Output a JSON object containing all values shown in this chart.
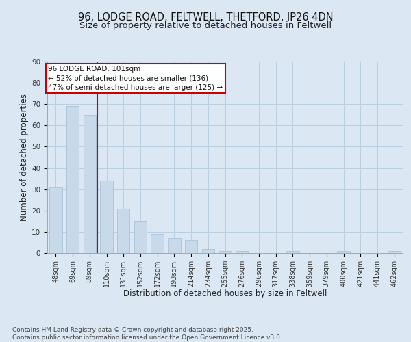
{
  "title_line1": "96, LODGE ROAD, FELTWELL, THETFORD, IP26 4DN",
  "title_line2": "Size of property relative to detached houses in Feltwell",
  "xlabel": "Distribution of detached houses by size in Feltwell",
  "ylabel": "Number of detached properties",
  "categories": [
    "48sqm",
    "69sqm",
    "89sqm",
    "110sqm",
    "131sqm",
    "152sqm",
    "172sqm",
    "193sqm",
    "214sqm",
    "234sqm",
    "255sqm",
    "276sqm",
    "296sqm",
    "317sqm",
    "338sqm",
    "359sqm",
    "379sqm",
    "400sqm",
    "421sqm",
    "441sqm",
    "462sqm"
  ],
  "values": [
    31,
    69,
    65,
    34,
    21,
    15,
    9,
    7,
    6,
    2,
    1,
    1,
    0,
    0,
    1,
    0,
    0,
    1,
    0,
    0,
    1
  ],
  "bar_color": "#c8d9ea",
  "bar_edge_color": "#a8c4d8",
  "grid_color": "#b8cfe0",
  "bg_color": "#dbe8f4",
  "vline_color": "#cc0000",
  "vline_x": 2.45,
  "annotation_text": "96 LODGE ROAD: 101sqm\n← 52% of detached houses are smaller (136)\n47% of semi-detached houses are larger (125) →",
  "annotation_box_color": "#ffffff",
  "annotation_edge_color": "#cc0000",
  "ylim": [
    0,
    90
  ],
  "yticks": [
    0,
    10,
    20,
    30,
    40,
    50,
    60,
    70,
    80,
    90
  ],
  "footer": "Contains HM Land Registry data © Crown copyright and database right 2025.\nContains public sector information licensed under the Open Government Licence v3.0.",
  "title_fontsize": 10.5,
  "subtitle_fontsize": 9.5,
  "axis_label_fontsize": 8.5,
  "tick_fontsize": 7,
  "footer_fontsize": 6.5,
  "ann_fontsize": 7.5
}
